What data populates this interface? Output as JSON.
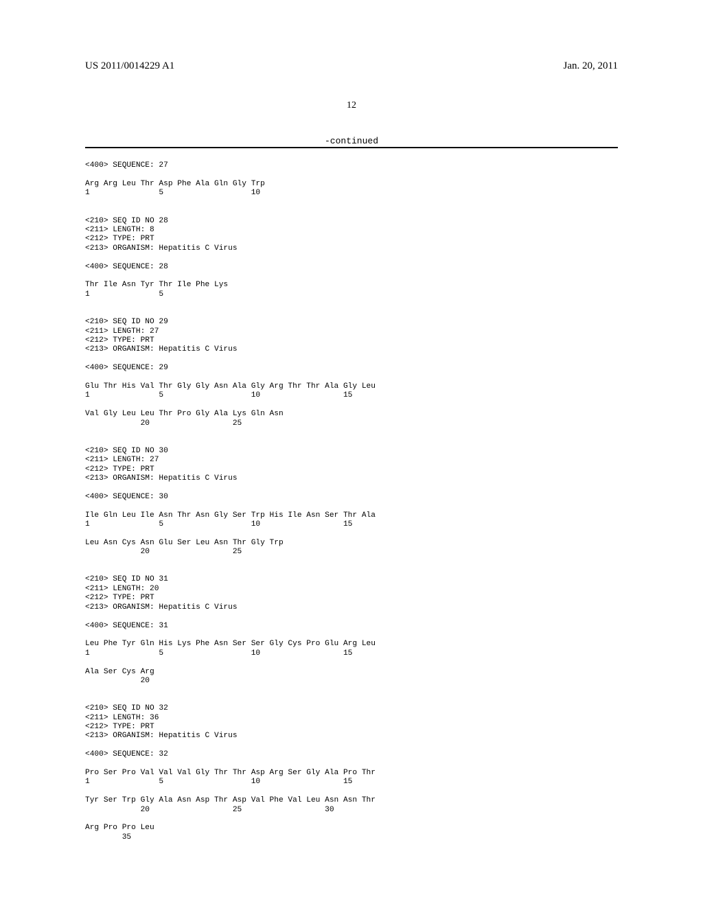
{
  "header": {
    "left": "US 2011/0014229 A1",
    "right": "Jan. 20, 2011"
  },
  "page_number": "12",
  "continued_label": "-continued",
  "sequences": [
    {
      "header_400": "<400> SEQUENCE: 27",
      "lines": [
        "Arg Arg Leu Thr Asp Phe Ala Gln Gly Trp",
        "1               5                   10"
      ]
    },
    {
      "meta": [
        "<210> SEQ ID NO 28",
        "<211> LENGTH: 8",
        "<212> TYPE: PRT",
        "<213> ORGANISM: Hepatitis C Virus"
      ],
      "header_400": "<400> SEQUENCE: 28",
      "lines": [
        "Thr Ile Asn Tyr Thr Ile Phe Lys",
        "1               5"
      ]
    },
    {
      "meta": [
        "<210> SEQ ID NO 29",
        "<211> LENGTH: 27",
        "<212> TYPE: PRT",
        "<213> ORGANISM: Hepatitis C Virus"
      ],
      "header_400": "<400> SEQUENCE: 29",
      "lines": [
        "Glu Thr His Val Thr Gly Gly Asn Ala Gly Arg Thr Thr Ala Gly Leu",
        "1               5                   10                  15",
        "",
        "Val Gly Leu Leu Thr Pro Gly Ala Lys Gln Asn",
        "            20                  25"
      ]
    },
    {
      "meta": [
        "<210> SEQ ID NO 30",
        "<211> LENGTH: 27",
        "<212> TYPE: PRT",
        "<213> ORGANISM: Hepatitis C Virus"
      ],
      "header_400": "<400> SEQUENCE: 30",
      "lines": [
        "Ile Gln Leu Ile Asn Thr Asn Gly Ser Trp His Ile Asn Ser Thr Ala",
        "1               5                   10                  15",
        "",
        "Leu Asn Cys Asn Glu Ser Leu Asn Thr Gly Trp",
        "            20                  25"
      ]
    },
    {
      "meta": [
        "<210> SEQ ID NO 31",
        "<211> LENGTH: 20",
        "<212> TYPE: PRT",
        "<213> ORGANISM: Hepatitis C Virus"
      ],
      "header_400": "<400> SEQUENCE: 31",
      "lines": [
        "Leu Phe Tyr Gln His Lys Phe Asn Ser Ser Gly Cys Pro Glu Arg Leu",
        "1               5                   10                  15",
        "",
        "Ala Ser Cys Arg",
        "            20"
      ]
    },
    {
      "meta": [
        "<210> SEQ ID NO 32",
        "<211> LENGTH: 36",
        "<212> TYPE: PRT",
        "<213> ORGANISM: Hepatitis C Virus"
      ],
      "header_400": "<400> SEQUENCE: 32",
      "lines": [
        "Pro Ser Pro Val Val Val Gly Thr Thr Asp Arg Ser Gly Ala Pro Thr",
        "1               5                   10                  15",
        "",
        "Tyr Ser Trp Gly Ala Asn Asp Thr Asp Val Phe Val Leu Asn Asn Thr",
        "            20                  25                  30",
        "",
        "Arg Pro Pro Leu",
        "        35"
      ]
    }
  ]
}
